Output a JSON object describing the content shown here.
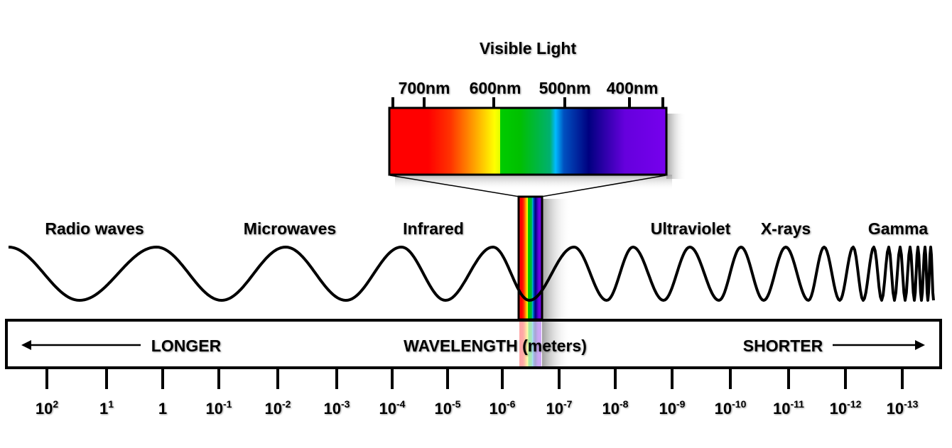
{
  "title": "Visible Light",
  "visible_ticks": [
    "700nm",
    "600nm",
    "500nm",
    "400nm"
  ],
  "bands": [
    "Radio waves",
    "Microwaves",
    "Infrared",
    "Ultraviolet",
    "X-rays",
    "Gamma"
  ],
  "axis": {
    "left": "LONGER",
    "center": "WAVELENGTH (meters)",
    "right": "SHORTER"
  },
  "scale_ticks": [
    {
      "base": "10",
      "exp": "2"
    },
    {
      "base": "1",
      "exp": "1"
    },
    {
      "base": "1",
      "exp": ""
    },
    {
      "base": "10",
      "exp": "-1"
    },
    {
      "base": "10",
      "exp": "-2"
    },
    {
      "base": "10",
      "exp": "-3"
    },
    {
      "base": "10",
      "exp": "-4"
    },
    {
      "base": "10",
      "exp": "-5"
    },
    {
      "base": "10",
      "exp": "-6"
    },
    {
      "base": "10",
      "exp": "-7"
    },
    {
      "base": "10",
      "exp": "-8"
    },
    {
      "base": "10",
      "exp": "-9"
    },
    {
      "base": "10",
      "exp": "-10"
    },
    {
      "base": "10",
      "exp": "-11"
    },
    {
      "base": "10",
      "exp": "-12"
    },
    {
      "base": "10",
      "exp": "-13"
    }
  ],
  "spectrum_colors": [
    "#ff0000",
    "#ff3300",
    "#ff9900",
    "#ffff00",
    "#00cc00",
    "#00b070",
    "#00bbff",
    "#000080",
    "#6600dd",
    "#7700ee"
  ]
}
